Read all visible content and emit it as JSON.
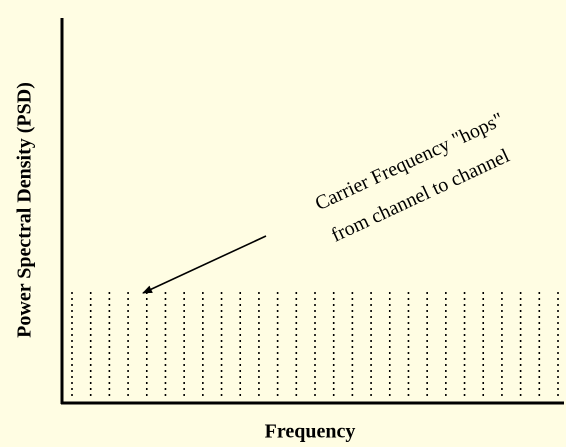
{
  "y_axis_label": "Power Spectral Density (PSD)",
  "x_axis_label": "Frequency",
  "annotation": {
    "lines": [
      "Carrier Frequency \"hops\"",
      "from channel to channel"
    ]
  }
}
